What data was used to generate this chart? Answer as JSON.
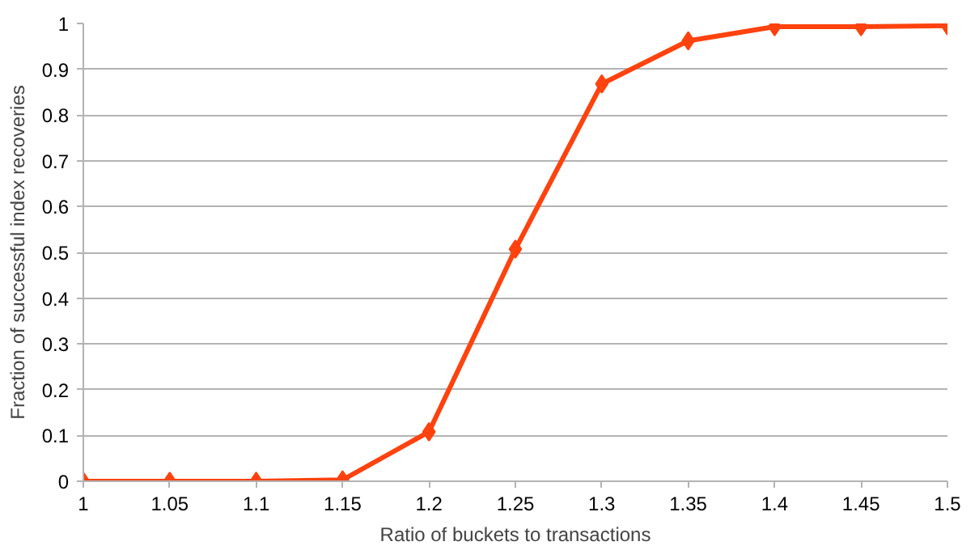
{
  "chart_data": {
    "type": "line",
    "xlabel": "Ratio of buckets to transactions",
    "ylabel": "Fraction of successful index recoveries",
    "x": [
      1,
      1.05,
      1.1,
      1.15,
      1.2,
      1.25,
      1.3,
      1.35,
      1.4,
      1.45,
      1.5
    ],
    "series": [
      {
        "color": "#ff420e",
        "values": [
          0,
          0,
          0,
          0.003,
          0.108,
          0.507,
          0.868,
          0.962,
          0.993,
          0.993,
          0.995
        ]
      }
    ],
    "xlim": [
      1,
      1.5
    ],
    "xticks": [
      1,
      1.05,
      1.1,
      1.15,
      1.2,
      1.25,
      1.3,
      1.35,
      1.4,
      1.45,
      1.5
    ],
    "ylim": [
      0,
      1
    ],
    "yticks": [
      0,
      0.1,
      0.2,
      0.3,
      0.4,
      0.5,
      0.6,
      0.7,
      0.8,
      0.9,
      1
    ],
    "grid": "y",
    "marker": "diamond",
    "line_style": "solid"
  }
}
